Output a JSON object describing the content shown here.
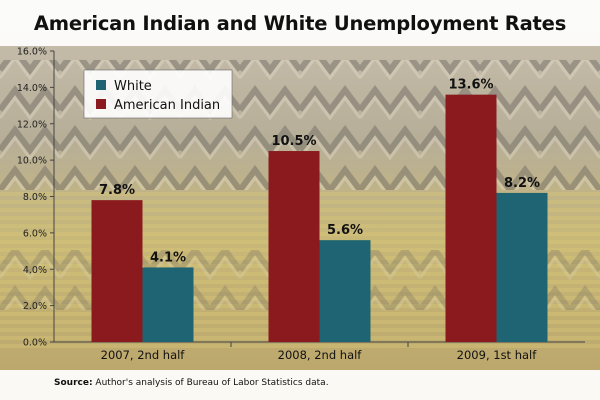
{
  "chart_data": {
    "type": "bar",
    "title": "American Indian and White Unemployment Rates",
    "categories": [
      "2007, 2nd half",
      "2008, 2nd half",
      "2009, 1st half"
    ],
    "series": [
      {
        "name": "American Indian",
        "values": [
          7.8,
          10.5,
          13.6
        ],
        "labels": [
          "7.8%",
          "10.5%",
          "13.6%"
        ],
        "color": "#8b1a1f"
      },
      {
        "name": "White",
        "values": [
          4.1,
          5.6,
          8.2
        ],
        "labels": [
          "4.1%",
          "5.6%",
          "8.2%"
        ],
        "color": "#1e6472"
      }
    ],
    "legend_order": [
      "White",
      "American Indian"
    ],
    "y_ticks": [
      "0.0%",
      "2.0%",
      "4.0%",
      "6.0%",
      "8.0%",
      "10.0%",
      "12.0%",
      "14.0%",
      "16.0%"
    ],
    "ylim": [
      0,
      16
    ],
    "xlabel": "",
    "ylabel": "",
    "legend_position": "top-left",
    "grid": false
  },
  "source": {
    "label": "Source:",
    "text": " Author's analysis of Bureau of Labor Statistics data."
  }
}
